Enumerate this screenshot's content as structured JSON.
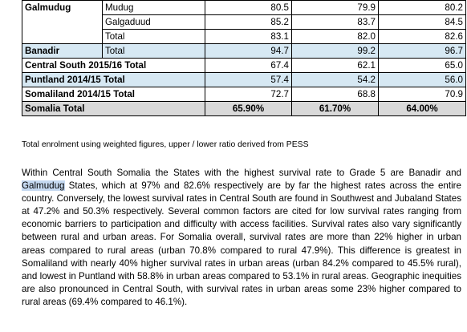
{
  "table": {
    "rows": [
      {
        "region": "Galmudug",
        "sub": "Mudug",
        "v1": "80.5",
        "v2": "79.9",
        "v3": "80.2"
      },
      {
        "sub": "Galgaduud",
        "v1": "85.2",
        "v2": "83.7",
        "v3": "84.5"
      },
      {
        "sub": "Total",
        "v1": "83.1",
        "v2": "82.0",
        "v3": "82.6"
      },
      {
        "region": "Banadir",
        "sub": "Total",
        "v1": "94.7",
        "v2": "99.2",
        "v3": "96.7"
      },
      {
        "label": "Central South 2015/16 Total",
        "v1": "67.4",
        "v2": "62.1",
        "v3": "65.0"
      },
      {
        "label": "Puntland 2014/15 Total",
        "v1": "57.4",
        "v2": "54.2",
        "v3": "56.0"
      },
      {
        "label": "Somaliland 2014/15 Total",
        "v1": "72.7",
        "v2": "68.8",
        "v3": "70.9"
      },
      {
        "label": "Somalia Total",
        "v1": "65.90%",
        "v2": "61.70%",
        "v3": "64.00%"
      }
    ],
    "caption": "Total enrolment using weighted figures, upper / lower ratio derived from PESS"
  },
  "paragraph": {
    "before_highlight": "Within Central South Somalia the States with the highest survival rate to Grade 5 are Banadir and ",
    "highlight": "Galmudug",
    "after_highlight": " States, which at 97% and 82.6% respectively are by far the highest rates across the entire country.  Conversely, the lowest survival rates in Central South are found in Southwest and Jubaland States at 47.2% and 50.3% respectively.  Several common factors are cited for low survival rates ranging from economic barriers to participation and difficulty with access facilities. Survival rates also vary significantly between rural and urban areas.  For Somalia overall, survival rates are more than 22% higher in urban areas compared to rural areas (urban 70.8% compared to rural 47.9%).  This difference is greatest in Somaliland with nearly 40% higher survival rates in urban areas (urban 84.2% compared to 45.5% rural), and lowest in Puntland with 58.8% in urban areas compared to 53.1% in rural areas.  Geographic inequities are also pronounced in Central South, with survival rates in urban areas some 23% higher compared to rural areas (69.4% compared to 46.1%)."
  },
  "colors": {
    "row_highlight": "#d6e8f3",
    "total_row": "#d9d9d9",
    "text_highlight": "#c5d9f1"
  }
}
